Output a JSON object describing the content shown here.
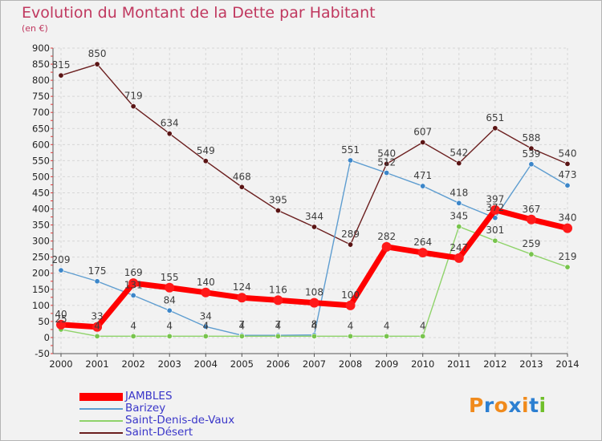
{
  "title": "Evolution du Montant de la Dette par Habitant",
  "unit": "(en €)",
  "logo": {
    "letters": [
      "P",
      "r",
      "o",
      "x",
      "i",
      "t",
      "i"
    ],
    "colors": [
      "#f08a1c",
      "#2c7fd1",
      "#f08a1c",
      "#2c7fd1",
      "#f08a1c",
      "#2c7fd1",
      "#6fbf2a"
    ]
  },
  "chart_data": {
    "type": "line",
    "x": [
      "2000",
      "2001",
      "2002",
      "2003",
      "2004",
      "2005",
      "2006",
      "2007",
      "2008",
      "2009",
      "2010",
      "2011",
      "2012",
      "2013",
      "2014"
    ],
    "ylim": [
      -50,
      900
    ],
    "yticks": [
      -50,
      0,
      50,
      100,
      150,
      200,
      250,
      300,
      350,
      400,
      450,
      500,
      550,
      600,
      650,
      700,
      750,
      800,
      850,
      900
    ],
    "grid": true,
    "legend_position": "bottom-left",
    "series": [
      {
        "name": "Saint-Désert",
        "color": "#6b1f1f",
        "marker": "#5a1414",
        "values": [
          815,
          850,
          719,
          634,
          549,
          468,
          395,
          344,
          289,
          540,
          607,
          542,
          651,
          588,
          540
        ],
        "labels": [
          "815",
          "850",
          "719",
          "634",
          "549",
          "468",
          "395",
          "344",
          "289",
          "540",
          "607",
          "542",
          "651",
          "588",
          "540"
        ]
      },
      {
        "name": "Barizey",
        "color": "#5e9dd0",
        "marker": "#3c86c9",
        "values": [
          209,
          175,
          131,
          84,
          34,
          7,
          7,
          8,
          551,
          512,
          471,
          418,
          372,
          539,
          473
        ],
        "labels": [
          "209",
          "175",
          "131",
          "84",
          "34",
          "7",
          "7",
          "8",
          "551",
          "512",
          "471",
          "418",
          "372",
          "539",
          "473"
        ]
      },
      {
        "name": "Saint-Denis-de-Vaux",
        "color": "#8fd36a",
        "marker": "#78c44d",
        "values": [
          25,
          4,
          4,
          4,
          4,
          4,
          4,
          4,
          4,
          4,
          4,
          345,
          301,
          259,
          219
        ],
        "labels": [
          "25",
          "4",
          "4",
          "4",
          "4",
          "4",
          "4",
          "4",
          "4",
          "4",
          "4",
          "345",
          "301",
          "259",
          "219"
        ]
      },
      {
        "name": "JAMBLES",
        "color": "#ff0000",
        "marker": "#ff1a1a",
        "values": [
          40,
          33,
          169,
          155,
          140,
          124,
          116,
          108,
          100,
          282,
          264,
          247,
          397,
          367,
          340
        ],
        "labels": [
          "40",
          "33",
          "169",
          "155",
          "140",
          "124",
          "116",
          "108",
          "100",
          "282",
          "264",
          "247",
          "397",
          "367",
          "340"
        ]
      }
    ],
    "legend_order": [
      "JAMBLES",
      "Barizey",
      "Saint-Denis-de-Vaux",
      "Saint-Désert"
    ]
  }
}
